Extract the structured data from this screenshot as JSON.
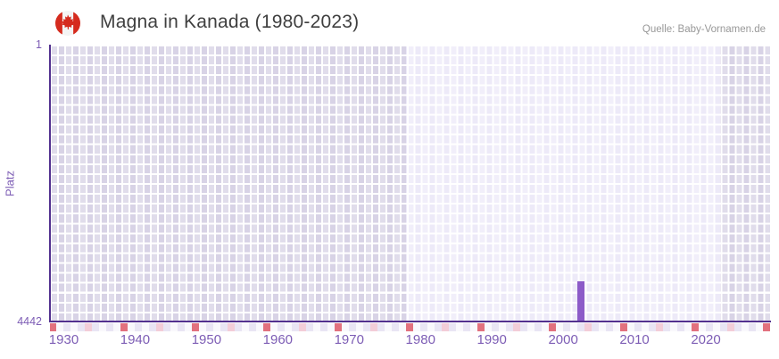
{
  "header": {
    "title": "Magna in Kanada (1980-2023)",
    "source": "Quelle: Baby-Vornamen.de",
    "flag_icon": "canada-flag"
  },
  "chart_data": {
    "type": "bar",
    "title": "Magna in Kanada (1980-2023)",
    "xlabel": "",
    "ylabel": "Platz",
    "x_range": [
      1928,
      2029
    ],
    "x_ticks": [
      1930,
      1940,
      1950,
      1960,
      1970,
      1980,
      1990,
      2000,
      2010,
      2020
    ],
    "y_axis": {
      "min": 1,
      "max": 4442,
      "min_label": "1",
      "max_label": "4442",
      "inverted": true
    },
    "series": [
      {
        "name": "Magna",
        "points": [
          {
            "year": 2002,
            "rank": 3800
          }
        ]
      }
    ],
    "data_period_zone": {
      "from": 1978,
      "to": 2022
    },
    "rug_markers": {
      "start_year": 1928,
      "end_year": 2028,
      "red_every": 10,
      "pink_offset": 5
    },
    "grid": true,
    "legend": "none",
    "colors": {
      "bar": "#8c5bc8",
      "axis_line": "#53318f",
      "tick_label": "#7d5db5",
      "zone_dark": "#d8d3e6",
      "zone_light": "#edeaf8",
      "rug_red": "#e2717e",
      "rug_pink": "#f3cdd8",
      "rug_even": "#e9e5f4",
      "rug_odd": "#f9f8fc",
      "flag_red": "#d52b1e",
      "title_text": "#3f3f3f",
      "source_text": "#989898"
    }
  }
}
